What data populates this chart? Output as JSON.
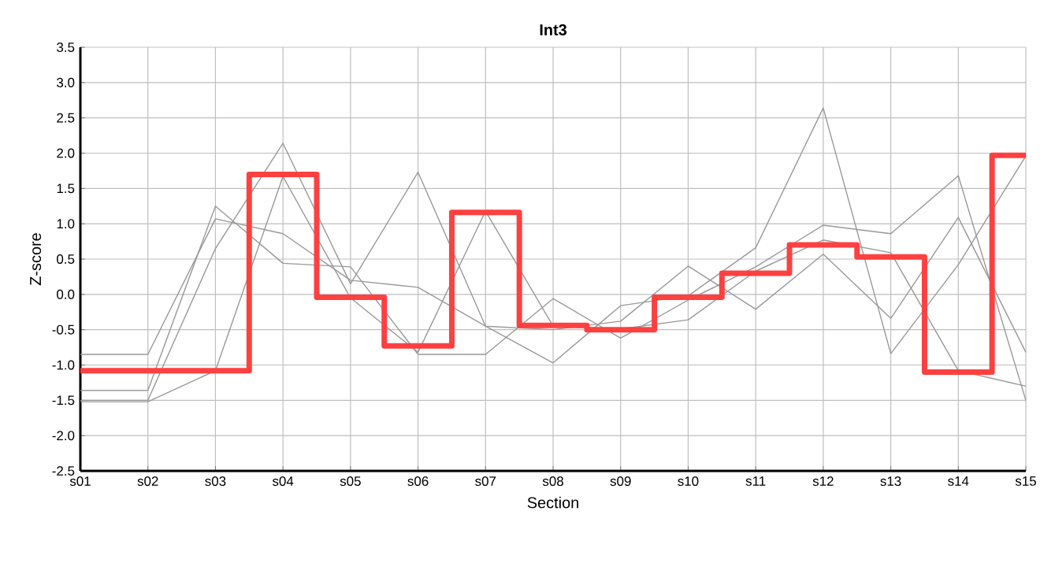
{
  "chart_data": {
    "type": "line",
    "title": "Int3",
    "xlabel": "Section",
    "ylabel": "Z-score",
    "categories": [
      "s01",
      "s02",
      "s03",
      "s04",
      "s05",
      "s06",
      "s07",
      "s08",
      "s09",
      "s10",
      "s11",
      "s12",
      "s13",
      "s14",
      "s15"
    ],
    "ylim": [
      -2.5,
      3.5
    ],
    "yticks": [
      {
        "value": -2.5,
        "label": "-2.5"
      },
      {
        "value": -2,
        "label": "-2.0"
      },
      {
        "value": -1.5,
        "label": "-1.5"
      },
      {
        "value": -1,
        "label": "-1.0"
      },
      {
        "value": -0.5,
        "label": "-0.5"
      },
      {
        "value": 0,
        "label": "0.0"
      },
      {
        "value": 0.5,
        "label": "0.5"
      },
      {
        "value": 1,
        "label": "1.0"
      },
      {
        "value": 1.5,
        "label": "1.5"
      },
      {
        "value": 2,
        "label": "2.0"
      },
      {
        "value": 2.5,
        "label": "2.5"
      },
      {
        "value": 3,
        "label": "3.0"
      },
      {
        "value": 3.5,
        "label": "3.5"
      }
    ],
    "grid": true,
    "series": [
      {
        "color": "#999999",
        "values": [
          -0.85,
          -0.85,
          1.07,
          0.86,
          0.2,
          0.1,
          -0.45,
          -0.5,
          -0.38,
          0.4,
          -0.21,
          0.57,
          -0.34,
          1.09,
          -0.82
        ]
      },
      {
        "color": "#999999",
        "values": [
          -1.36,
          -1.36,
          1.25,
          0.44,
          0.39,
          -0.85,
          -0.85,
          -0.06,
          -0.62,
          -0.08,
          0.39,
          0.98,
          0.86,
          1.68,
          -1.5
        ]
      },
      {
        "color": "#999999",
        "values": [
          -1.5,
          -1.5,
          0.65,
          2.14,
          0.15,
          1.73,
          -0.45,
          -0.97,
          -0.16,
          -0.02,
          0.66,
          2.64,
          -0.84,
          0.42,
          1.96
        ]
      },
      {
        "color": "#999999",
        "values": [
          -1.52,
          -1.52,
          -1.08,
          1.67,
          -0.05,
          -0.82,
          1.18,
          -0.45,
          -0.49,
          -0.36,
          0.33,
          0.77,
          0.59,
          -1.08,
          -1.3
        ]
      },
      {
        "type": "step",
        "color": "#ff4040",
        "values": [
          -1.08,
          -1.08,
          -1.08,
          1.7,
          -0.04,
          -0.73,
          1.16,
          -0.44,
          -0.5,
          -0.04,
          0.3,
          0.7,
          0.53,
          -1.1,
          1.97
        ]
      }
    ]
  }
}
